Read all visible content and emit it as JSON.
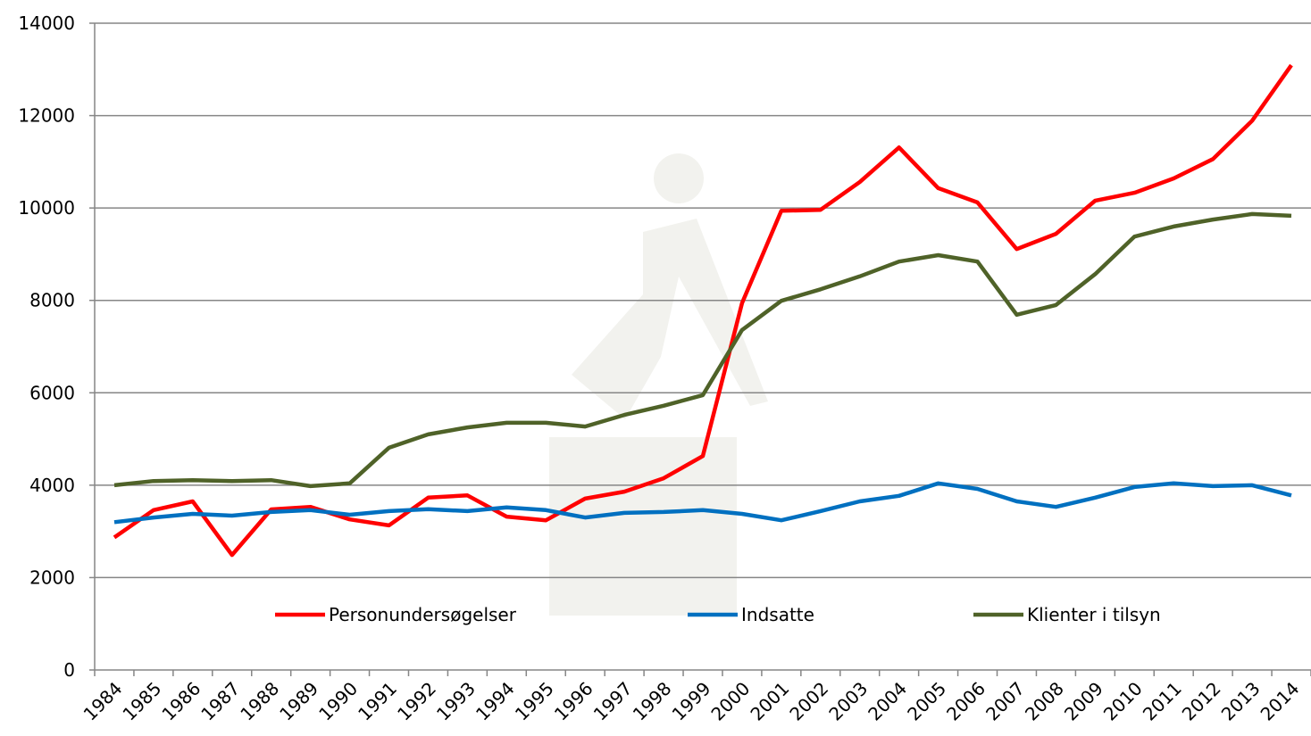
{
  "chart_data": {
    "type": "line",
    "categories": [
      "1984",
      "1985",
      "1986",
      "1987",
      "1988",
      "1989",
      "1990",
      "1991",
      "1992",
      "1993",
      "1994",
      "1995",
      "1996",
      "1997",
      "1998",
      "1999",
      "2000",
      "2001",
      "2002",
      "2003",
      "2004",
      "2005",
      "2006",
      "2007",
      "2008",
      "2009",
      "2010",
      "2011",
      "2012",
      "2013",
      "2014"
    ],
    "series": [
      {
        "name": "Personundersøgelser",
        "color": "#ff0000",
        "values": [
          2870,
          3460,
          3650,
          2490,
          3475,
          3530,
          3260,
          3130,
          3730,
          3780,
          3320,
          3240,
          3710,
          3860,
          4150,
          4630,
          7940,
          9940,
          9960,
          10560,
          11310,
          10430,
          10120,
          9110,
          9440,
          10160,
          10330,
          10640,
          11060,
          11890,
          13090
        ]
      },
      {
        "name": "Indsatte",
        "color": "#0070c0",
        "values": [
          3200,
          3300,
          3380,
          3340,
          3420,
          3460,
          3360,
          3440,
          3480,
          3440,
          3520,
          3460,
          3300,
          3400,
          3420,
          3460,
          3380,
          3240,
          3440,
          3650,
          3770,
          4040,
          3920,
          3650,
          3530,
          3730,
          3960,
          4040,
          3980,
          4000,
          3780
        ]
      },
      {
        "name": "Klienter i tilsyn",
        "color": "#4f6228",
        "values": [
          4000,
          4090,
          4110,
          4090,
          4110,
          3980,
          4040,
          4810,
          5100,
          5250,
          5350,
          5350,
          5270,
          5520,
          5720,
          5950,
          7360,
          7990,
          8240,
          8520,
          8840,
          8980,
          8840,
          7690,
          7900,
          8570,
          9380,
          9600,
          9750,
          9870,
          9830
        ]
      }
    ],
    "ylim": [
      0,
      14000
    ],
    "yticks": [
      0,
      2000,
      4000,
      6000,
      8000,
      10000,
      12000,
      14000
    ],
    "grid": true
  }
}
